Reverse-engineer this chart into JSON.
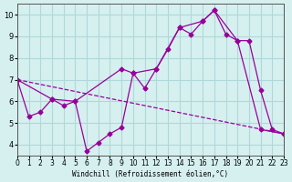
{
  "title": "",
  "xlabel": "Windchill (Refroidissement éolien,°C)",
  "ylabel": "",
  "bg_color": "#d6f0f0",
  "grid_color": "#b0d8d8",
  "line_color": "#990099",
  "xlim": [
    0,
    23
  ],
  "ylim": [
    3.5,
    10.5
  ],
  "xticks": [
    0,
    1,
    2,
    3,
    4,
    5,
    6,
    7,
    8,
    9,
    10,
    11,
    12,
    13,
    14,
    15,
    16,
    17,
    18,
    19,
    20,
    21,
    22,
    23
  ],
  "yticks": [
    4,
    5,
    6,
    7,
    8,
    9,
    10
  ],
  "line1_x": [
    0,
    1,
    2,
    3,
    4,
    5,
    6,
    7,
    8,
    9,
    10,
    11,
    12,
    13,
    14,
    15,
    16,
    17,
    18,
    19,
    20,
    21,
    22,
    23
  ],
  "line1_y": [
    7.0,
    5.3,
    5.5,
    6.1,
    5.8,
    6.0,
    3.7,
    4.1,
    4.5,
    4.8,
    7.3,
    6.6,
    7.5,
    8.4,
    9.4,
    9.1,
    9.7,
    10.2,
    9.1,
    8.8,
    8.8,
    6.5,
    4.7,
    4.5
  ],
  "line2_x": [
    0,
    3,
    5,
    9,
    10,
    12,
    14,
    16,
    17,
    19,
    21,
    23
  ],
  "line2_y": [
    7.0,
    6.1,
    6.0,
    7.5,
    7.3,
    7.5,
    9.4,
    9.7,
    10.2,
    8.8,
    4.7,
    4.5
  ],
  "line3_x": [
    0,
    23
  ],
  "line3_y": [
    7.0,
    4.5
  ]
}
